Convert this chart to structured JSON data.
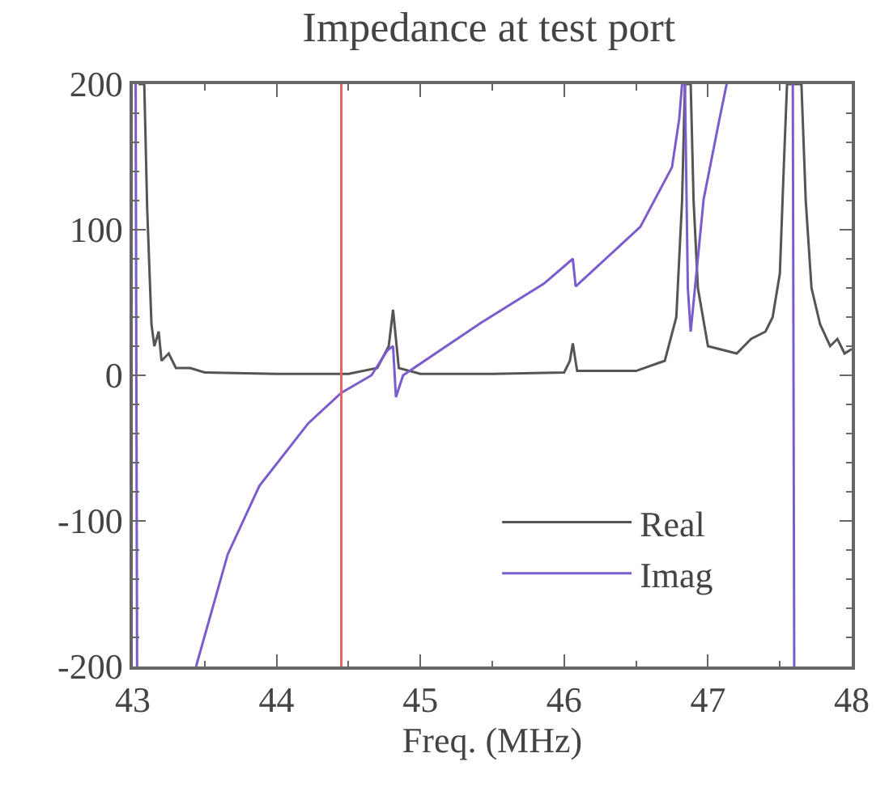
{
  "chart_data": {
    "type": "line",
    "title": "Impedance at test port",
    "xlabel": "Freq. (MHz)",
    "xlim": [
      43,
      48
    ],
    "xticks": [
      43,
      44,
      45,
      46,
      47,
      48
    ],
    "ylim": [
      -200,
      200
    ],
    "yticks": [
      -200,
      -100,
      0,
      100,
      200
    ],
    "legend": "bottom right",
    "line_style": "solid",
    "marker": "none",
    "series": [
      {
        "name": "Real",
        "color": "#555555",
        "x": [
          43.04,
          43.08,
          43.1,
          43.13,
          43.15,
          43.18,
          43.2,
          43.25,
          43.3,
          43.4,
          43.5,
          44.0,
          44.5,
          44.7,
          44.78,
          44.81,
          44.85,
          45.0,
          45.5,
          46.0,
          46.04,
          46.06,
          46.09,
          46.5,
          46.7,
          46.78,
          46.82,
          46.84,
          46.88,
          46.9,
          46.93,
          47.0,
          47.2,
          47.3,
          47.4,
          47.45,
          47.5,
          47.53,
          47.55,
          47.6,
          47.65,
          47.68,
          47.72,
          47.78,
          47.85,
          47.9,
          47.95,
          48.0
        ],
        "values": [
          200,
          200,
          115,
          35,
          20,
          30,
          10,
          15,
          5,
          5,
          2,
          1,
          1,
          5,
          20,
          45,
          5,
          1,
          1,
          2,
          10,
          22,
          3,
          3,
          10,
          40,
          120,
          200,
          200,
          120,
          60,
          20,
          15,
          25,
          30,
          40,
          70,
          150,
          200,
          200,
          200,
          120,
          60,
          35,
          20,
          25,
          15,
          18
        ]
      },
      {
        "name": "Imag",
        "color": "#7b5ccc",
        "x": [
          43.02,
          43.03,
          43.2,
          43.44,
          43.66,
          43.88,
          44.22,
          44.45,
          44.66,
          44.77,
          44.81,
          44.83,
          44.88,
          45.42,
          45.86,
          46.06,
          46.08,
          46.53,
          46.75,
          46.8,
          46.82,
          46.84,
          46.86,
          46.88,
          46.97,
          47.08,
          47.13,
          47.3,
          47.59,
          47.6
        ],
        "values": [
          200,
          -200,
          null,
          -200,
          -123,
          -76,
          -33,
          -12,
          0,
          17,
          20,
          -15,
          0,
          36,
          63,
          80,
          61,
          102,
          143,
          176,
          200,
          200,
          60,
          30,
          121,
          176,
          200,
          null,
          200,
          -200
        ]
      }
    ],
    "ref_lines": [
      {
        "axis": "x",
        "value": 44.45,
        "color": "#f06060",
        "line_style": "solid"
      }
    ]
  }
}
